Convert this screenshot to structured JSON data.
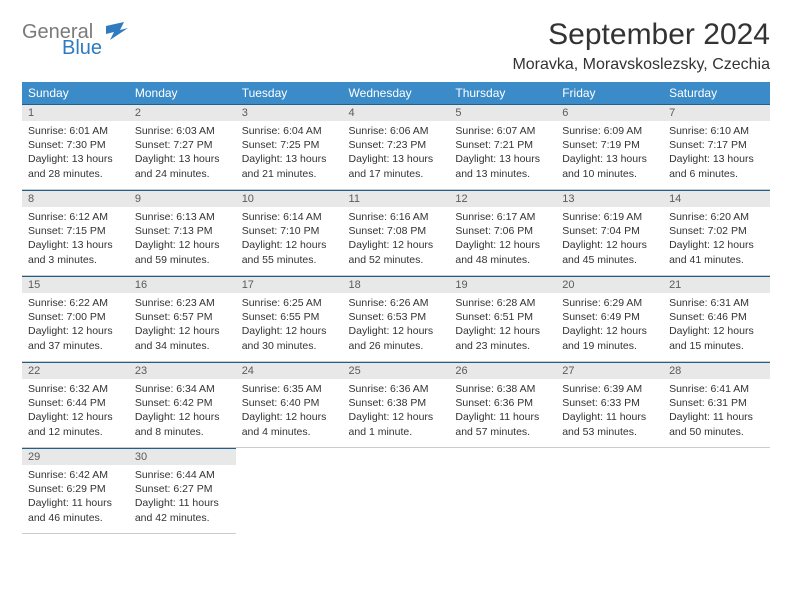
{
  "logo": {
    "text1": "General",
    "text2": "Blue",
    "color1": "#7a7a7a",
    "color2": "#2f7bbf",
    "flag_color": "#2f7bbf"
  },
  "title": "September 2024",
  "location": "Moravka, Moravskoslezsky, Czechia",
  "style": {
    "header_bg": "#3b8bc8",
    "header_fg": "#ffffff",
    "daynum_bg": "#e8e8e8",
    "daynum_fg": "#5b5b5b",
    "cell_border_top": "#1f5f8b",
    "cell_border_bottom": "#cccccc",
    "page_bg": "#ffffff",
    "text_color": "#333333",
    "font_family": "Arial, Helvetica, sans-serif",
    "title_fontsize_pt": 22,
    "location_fontsize_pt": 12,
    "header_fontsize_pt": 9,
    "cell_fontsize_pt": 8
  },
  "weekdays": [
    "Sunday",
    "Monday",
    "Tuesday",
    "Wednesday",
    "Thursday",
    "Friday",
    "Saturday"
  ],
  "days": [
    {
      "n": "1",
      "sunrise": "Sunrise: 6:01 AM",
      "sunset": "Sunset: 7:30 PM",
      "daylight1": "Daylight: 13 hours",
      "daylight2": "and 28 minutes."
    },
    {
      "n": "2",
      "sunrise": "Sunrise: 6:03 AM",
      "sunset": "Sunset: 7:27 PM",
      "daylight1": "Daylight: 13 hours",
      "daylight2": "and 24 minutes."
    },
    {
      "n": "3",
      "sunrise": "Sunrise: 6:04 AM",
      "sunset": "Sunset: 7:25 PM",
      "daylight1": "Daylight: 13 hours",
      "daylight2": "and 21 minutes."
    },
    {
      "n": "4",
      "sunrise": "Sunrise: 6:06 AM",
      "sunset": "Sunset: 7:23 PM",
      "daylight1": "Daylight: 13 hours",
      "daylight2": "and 17 minutes."
    },
    {
      "n": "5",
      "sunrise": "Sunrise: 6:07 AM",
      "sunset": "Sunset: 7:21 PM",
      "daylight1": "Daylight: 13 hours",
      "daylight2": "and 13 minutes."
    },
    {
      "n": "6",
      "sunrise": "Sunrise: 6:09 AM",
      "sunset": "Sunset: 7:19 PM",
      "daylight1": "Daylight: 13 hours",
      "daylight2": "and 10 minutes."
    },
    {
      "n": "7",
      "sunrise": "Sunrise: 6:10 AM",
      "sunset": "Sunset: 7:17 PM",
      "daylight1": "Daylight: 13 hours",
      "daylight2": "and 6 minutes."
    },
    {
      "n": "8",
      "sunrise": "Sunrise: 6:12 AM",
      "sunset": "Sunset: 7:15 PM",
      "daylight1": "Daylight: 13 hours",
      "daylight2": "and 3 minutes."
    },
    {
      "n": "9",
      "sunrise": "Sunrise: 6:13 AM",
      "sunset": "Sunset: 7:13 PM",
      "daylight1": "Daylight: 12 hours",
      "daylight2": "and 59 minutes."
    },
    {
      "n": "10",
      "sunrise": "Sunrise: 6:14 AM",
      "sunset": "Sunset: 7:10 PM",
      "daylight1": "Daylight: 12 hours",
      "daylight2": "and 55 minutes."
    },
    {
      "n": "11",
      "sunrise": "Sunrise: 6:16 AM",
      "sunset": "Sunset: 7:08 PM",
      "daylight1": "Daylight: 12 hours",
      "daylight2": "and 52 minutes."
    },
    {
      "n": "12",
      "sunrise": "Sunrise: 6:17 AM",
      "sunset": "Sunset: 7:06 PM",
      "daylight1": "Daylight: 12 hours",
      "daylight2": "and 48 minutes."
    },
    {
      "n": "13",
      "sunrise": "Sunrise: 6:19 AM",
      "sunset": "Sunset: 7:04 PM",
      "daylight1": "Daylight: 12 hours",
      "daylight2": "and 45 minutes."
    },
    {
      "n": "14",
      "sunrise": "Sunrise: 6:20 AM",
      "sunset": "Sunset: 7:02 PM",
      "daylight1": "Daylight: 12 hours",
      "daylight2": "and 41 minutes."
    },
    {
      "n": "15",
      "sunrise": "Sunrise: 6:22 AM",
      "sunset": "Sunset: 7:00 PM",
      "daylight1": "Daylight: 12 hours",
      "daylight2": "and 37 minutes."
    },
    {
      "n": "16",
      "sunrise": "Sunrise: 6:23 AM",
      "sunset": "Sunset: 6:57 PM",
      "daylight1": "Daylight: 12 hours",
      "daylight2": "and 34 minutes."
    },
    {
      "n": "17",
      "sunrise": "Sunrise: 6:25 AM",
      "sunset": "Sunset: 6:55 PM",
      "daylight1": "Daylight: 12 hours",
      "daylight2": "and 30 minutes."
    },
    {
      "n": "18",
      "sunrise": "Sunrise: 6:26 AM",
      "sunset": "Sunset: 6:53 PM",
      "daylight1": "Daylight: 12 hours",
      "daylight2": "and 26 minutes."
    },
    {
      "n": "19",
      "sunrise": "Sunrise: 6:28 AM",
      "sunset": "Sunset: 6:51 PM",
      "daylight1": "Daylight: 12 hours",
      "daylight2": "and 23 minutes."
    },
    {
      "n": "20",
      "sunrise": "Sunrise: 6:29 AM",
      "sunset": "Sunset: 6:49 PM",
      "daylight1": "Daylight: 12 hours",
      "daylight2": "and 19 minutes."
    },
    {
      "n": "21",
      "sunrise": "Sunrise: 6:31 AM",
      "sunset": "Sunset: 6:46 PM",
      "daylight1": "Daylight: 12 hours",
      "daylight2": "and 15 minutes."
    },
    {
      "n": "22",
      "sunrise": "Sunrise: 6:32 AM",
      "sunset": "Sunset: 6:44 PM",
      "daylight1": "Daylight: 12 hours",
      "daylight2": "and 12 minutes."
    },
    {
      "n": "23",
      "sunrise": "Sunrise: 6:34 AM",
      "sunset": "Sunset: 6:42 PM",
      "daylight1": "Daylight: 12 hours",
      "daylight2": "and 8 minutes."
    },
    {
      "n": "24",
      "sunrise": "Sunrise: 6:35 AM",
      "sunset": "Sunset: 6:40 PM",
      "daylight1": "Daylight: 12 hours",
      "daylight2": "and 4 minutes."
    },
    {
      "n": "25",
      "sunrise": "Sunrise: 6:36 AM",
      "sunset": "Sunset: 6:38 PM",
      "daylight1": "Daylight: 12 hours",
      "daylight2": "and 1 minute."
    },
    {
      "n": "26",
      "sunrise": "Sunrise: 6:38 AM",
      "sunset": "Sunset: 6:36 PM",
      "daylight1": "Daylight: 11 hours",
      "daylight2": "and 57 minutes."
    },
    {
      "n": "27",
      "sunrise": "Sunrise: 6:39 AM",
      "sunset": "Sunset: 6:33 PM",
      "daylight1": "Daylight: 11 hours",
      "daylight2": "and 53 minutes."
    },
    {
      "n": "28",
      "sunrise": "Sunrise: 6:41 AM",
      "sunset": "Sunset: 6:31 PM",
      "daylight1": "Daylight: 11 hours",
      "daylight2": "and 50 minutes."
    },
    {
      "n": "29",
      "sunrise": "Sunrise: 6:42 AM",
      "sunset": "Sunset: 6:29 PM",
      "daylight1": "Daylight: 11 hours",
      "daylight2": "and 46 minutes."
    },
    {
      "n": "30",
      "sunrise": "Sunrise: 6:44 AM",
      "sunset": "Sunset: 6:27 PM",
      "daylight1": "Daylight: 11 hours",
      "daylight2": "and 42 minutes."
    }
  ]
}
